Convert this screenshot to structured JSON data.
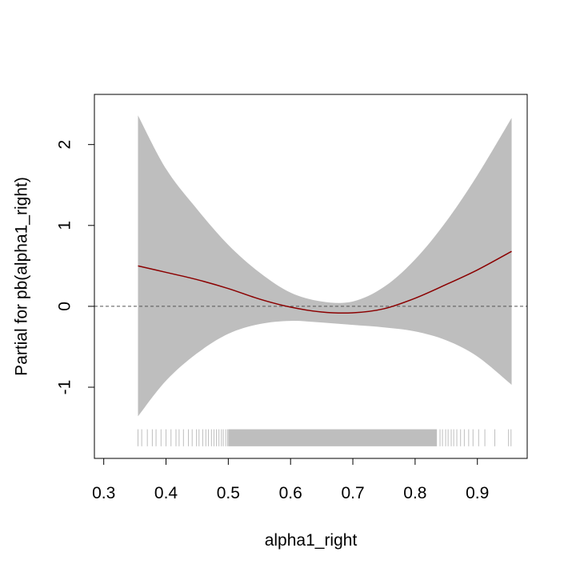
{
  "chart_data": {
    "type": "line",
    "title": "",
    "xlabel": "alpha1_right",
    "ylabel": "Partial for pb(alpha1_right)",
    "xlim": [
      0.285,
      0.98
    ],
    "ylim": [
      -1.88,
      2.62
    ],
    "x_ticks": [
      0.3,
      0.4,
      0.5,
      0.6,
      0.7,
      0.8,
      0.9
    ],
    "x_tick_labels": [
      "0.3",
      "0.4",
      "0.5",
      "0.6",
      "0.7",
      "0.8",
      "0.9"
    ],
    "y_ticks": [
      -1,
      0,
      1,
      2
    ],
    "y_tick_labels": [
      "-1",
      "0",
      "1",
      "2"
    ],
    "reference_line": {
      "y": 0,
      "style": "dashed"
    },
    "grid": false,
    "series": [
      {
        "kind": "fit",
        "x": [
          0.355,
          0.4,
          0.45,
          0.5,
          0.55,
          0.6,
          0.65,
          0.7,
          0.75,
          0.8,
          0.85,
          0.9,
          0.955
        ],
        "y": [
          0.5,
          0.42,
          0.33,
          0.22,
          0.09,
          -0.01,
          -0.07,
          -0.08,
          -0.03,
          0.1,
          0.27,
          0.45,
          0.68
        ]
      },
      {
        "kind": "confidence_band",
        "x": [
          0.355,
          0.4,
          0.45,
          0.5,
          0.55,
          0.6,
          0.65,
          0.7,
          0.75,
          0.8,
          0.85,
          0.9,
          0.955
        ],
        "upper": [
          2.36,
          1.7,
          1.2,
          0.76,
          0.42,
          0.17,
          0.06,
          0.06,
          0.24,
          0.58,
          1.05,
          1.62,
          2.33
        ],
        "lower": [
          -1.36,
          -0.92,
          -0.58,
          -0.34,
          -0.22,
          -0.18,
          -0.2,
          -0.23,
          -0.26,
          -0.31,
          -0.42,
          -0.62,
          -0.97
        ]
      }
    ],
    "rug": {
      "y_range": [
        -1.73,
        -1.52
      ],
      "sparse_x": [
        0.355,
        0.361,
        0.37,
        0.378,
        0.384,
        0.392,
        0.4,
        0.408,
        0.416,
        0.421,
        0.428,
        0.436,
        0.442,
        0.449,
        0.453,
        0.459,
        0.464,
        0.468,
        0.473,
        0.477,
        0.481,
        0.485,
        0.489,
        0.492,
        0.496,
        0.499,
        0.84,
        0.844,
        0.849,
        0.853,
        0.858,
        0.862,
        0.867,
        0.873,
        0.879,
        0.886,
        0.893,
        0.902,
        0.912,
        0.928,
        0.95,
        0.954
      ],
      "dense_range": [
        0.5,
        0.835
      ]
    },
    "colors": {
      "fit_line": "#8b0000",
      "band": "#bebebe",
      "rug": "#bebebe",
      "reference_line": "#555555",
      "axis": "#000000"
    }
  }
}
